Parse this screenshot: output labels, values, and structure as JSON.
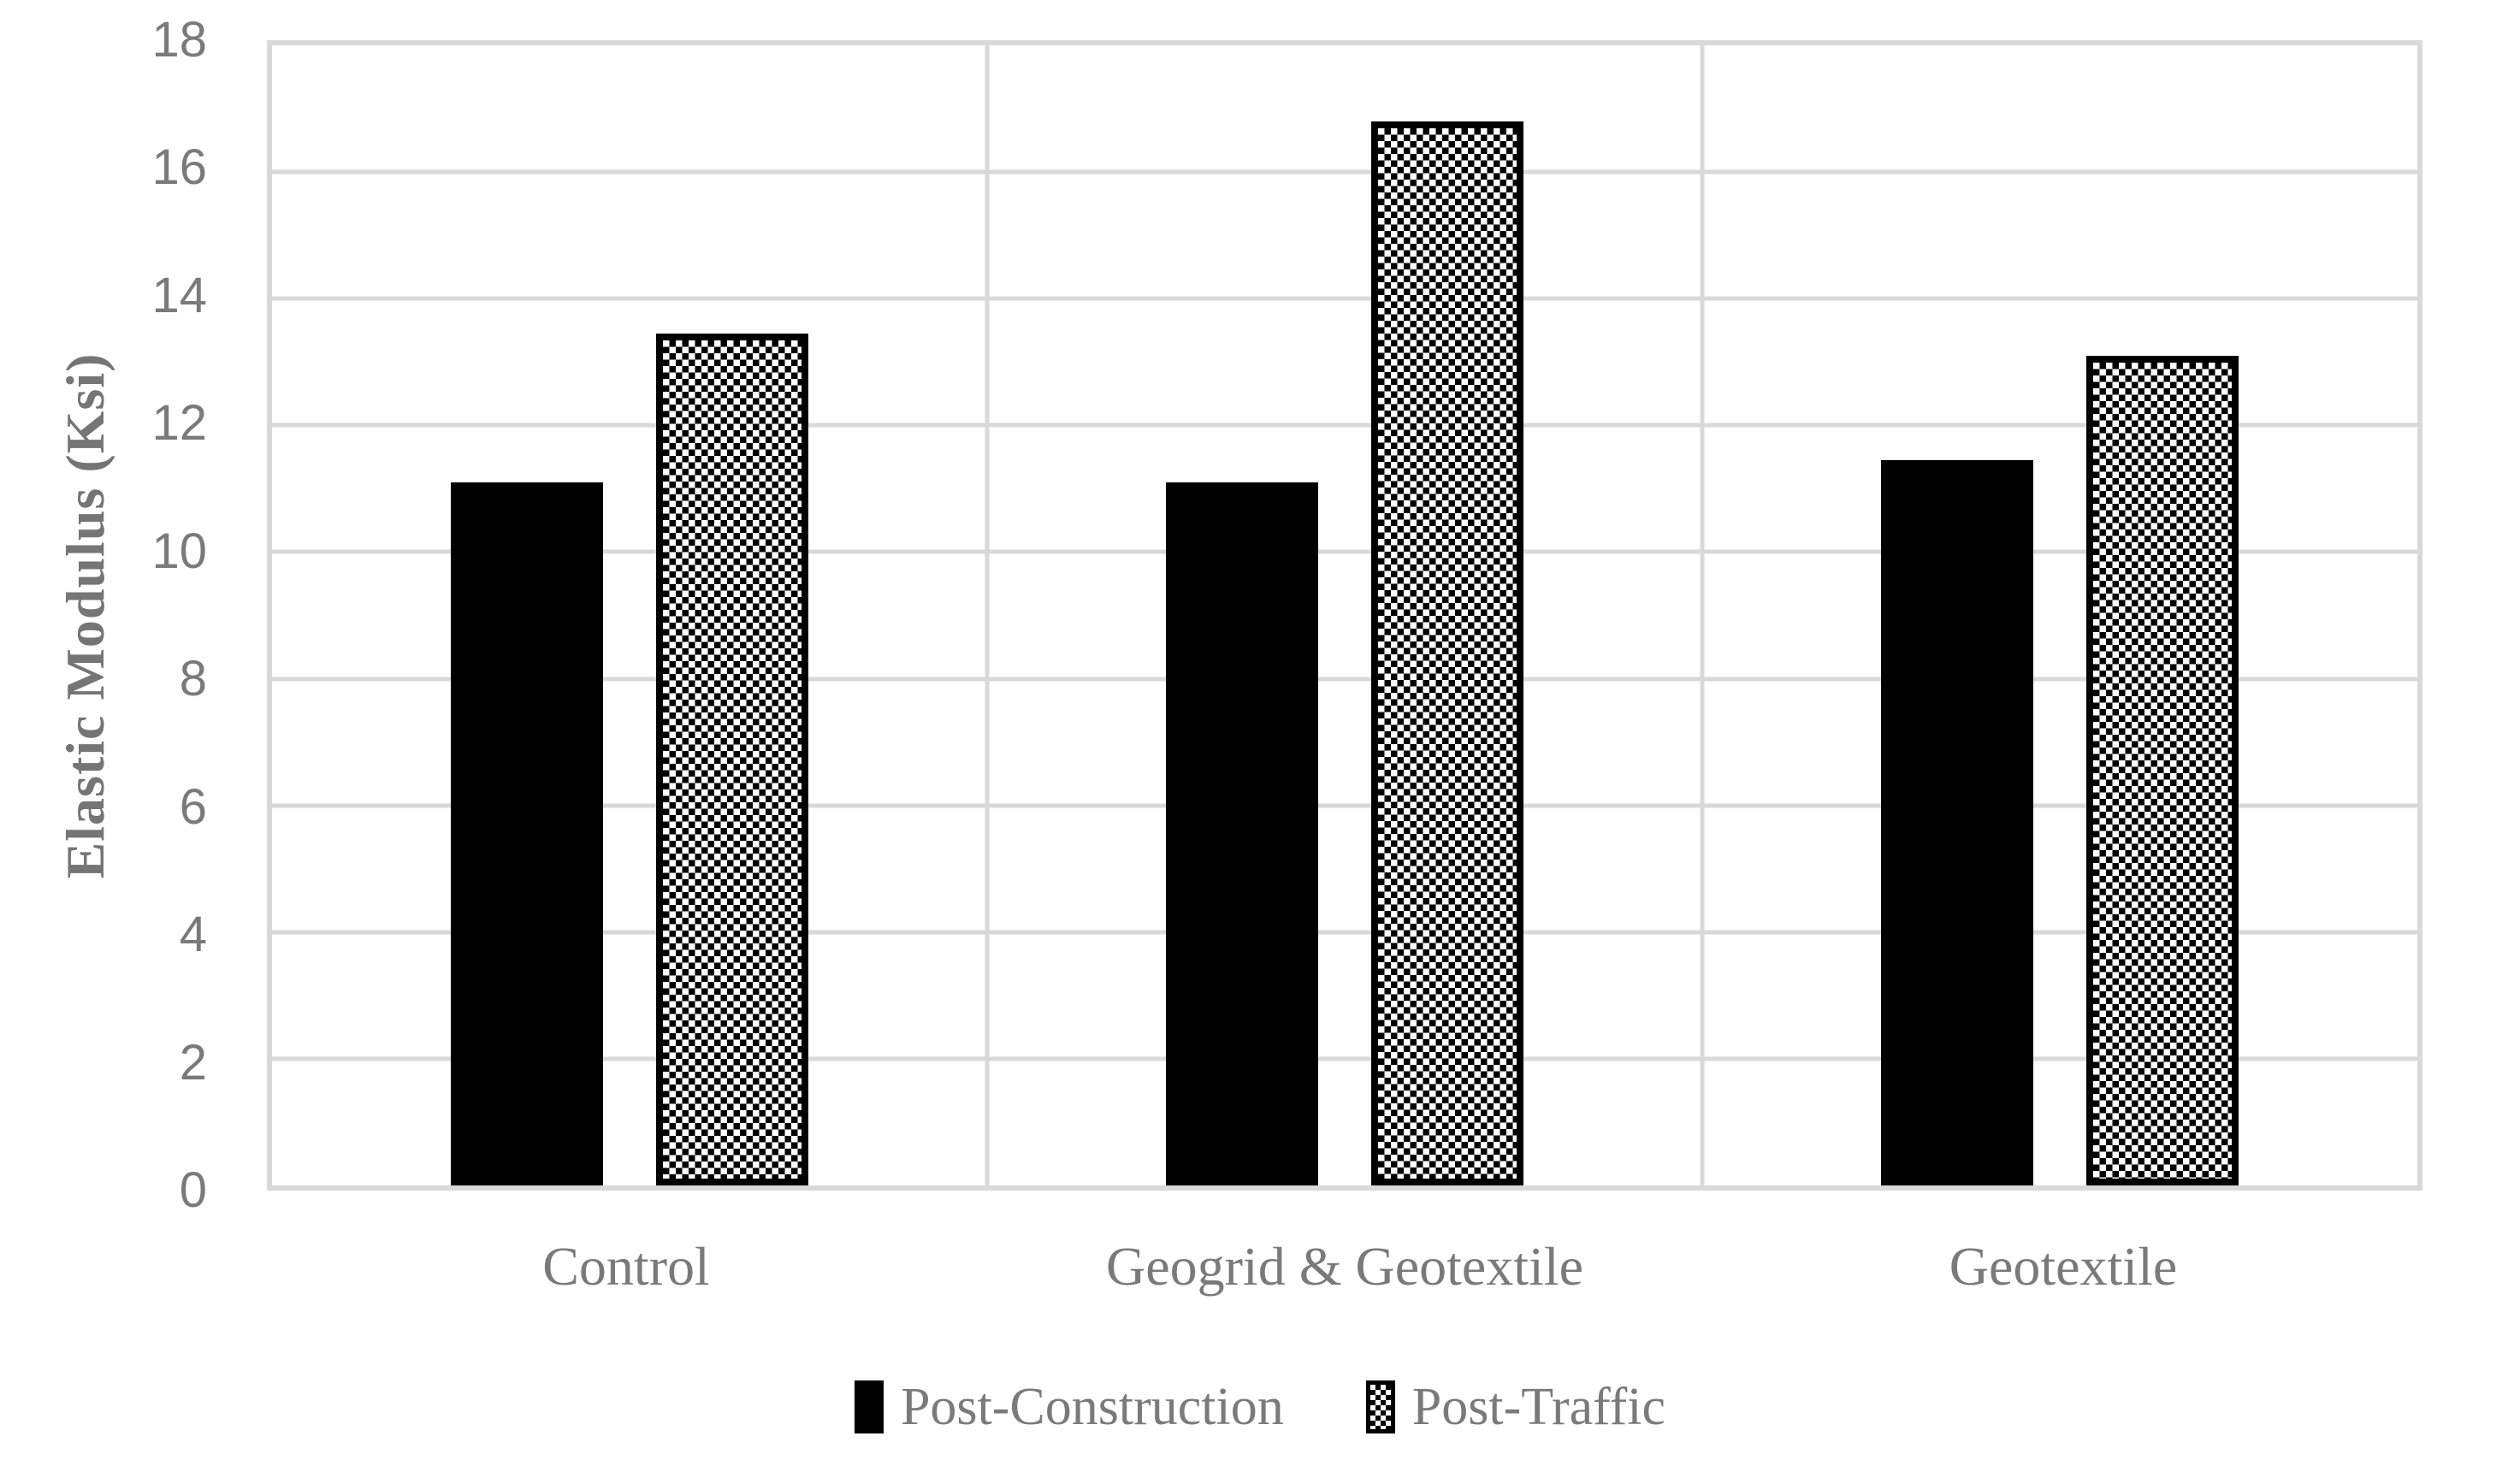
{
  "chart_data": {
    "type": "bar",
    "title": "",
    "xlabel": "",
    "ylabel": "Elastic Modulus (Ksi)",
    "ylim": [
      0,
      18
    ],
    "ytick_step": 2,
    "yticks": [
      0,
      2,
      4,
      6,
      8,
      10,
      12,
      14,
      16,
      18
    ],
    "grid": true,
    "legend_position": "bottom-center",
    "categories": [
      "Control",
      "Geogrid & Geotextile",
      "Geotextile"
    ],
    "series": [
      {
        "name": "Post-Construction",
        "pattern": "solid",
        "color": "#000000",
        "values": [
          11.1,
          11.1,
          11.45
        ]
      },
      {
        "name": "Post-Traffic",
        "pattern": "checker",
        "color": "#000000",
        "values": [
          13.45,
          16.8,
          13.1
        ]
      }
    ],
    "colors": {
      "text": "#7a7a7a",
      "gridline": "#d9d9d9",
      "background": "#ffffff",
      "bar_fill": "#000000"
    }
  }
}
